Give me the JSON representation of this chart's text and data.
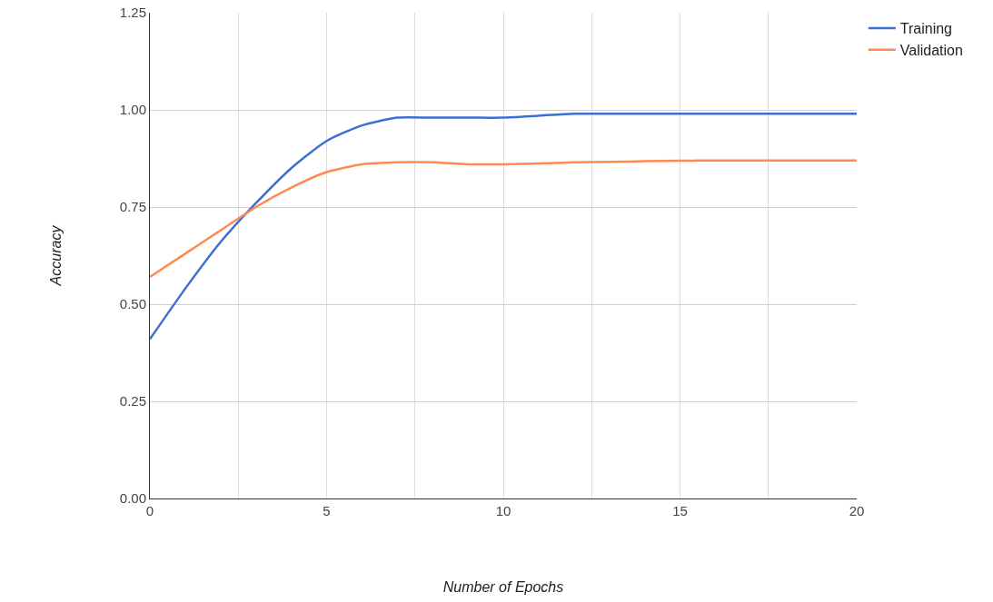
{
  "chart_data": {
    "type": "line",
    "xlabel": "Number of Epochs",
    "ylabel": "Accuracy",
    "x": [
      0,
      1,
      2,
      3,
      4,
      5,
      6,
      7,
      8,
      9,
      10,
      11,
      12,
      13,
      14,
      15,
      16,
      17,
      18,
      19,
      20
    ],
    "series": [
      {
        "name": "Training",
        "color": "#3c6fd6",
        "values": [
          0.41,
          0.54,
          0.66,
          0.76,
          0.85,
          0.92,
          0.96,
          0.98,
          0.98,
          0.98,
          0.98,
          0.985,
          0.99,
          0.99,
          0.99,
          0.99,
          0.99,
          0.99,
          0.99,
          0.99,
          0.99
        ]
      },
      {
        "name": "Validation",
        "color": "#ff8a4f",
        "values": [
          0.57,
          0.63,
          0.69,
          0.75,
          0.8,
          0.84,
          0.86,
          0.865,
          0.865,
          0.86,
          0.86,
          0.862,
          0.865,
          0.866,
          0.868,
          0.869,
          0.87,
          0.87,
          0.87,
          0.87,
          0.87
        ]
      }
    ],
    "xlim": [
      0,
      20
    ],
    "xticks": [
      0,
      {
        "value": 2.5,
        "label": null
      },
      5,
      {
        "value": 7.5,
        "label": null
      },
      10,
      {
        "value": 12.5,
        "label": null
      },
      15,
      {
        "value": 17.5,
        "label": null
      },
      20
    ],
    "ylim": [
      0,
      1.25
    ],
    "yticks": [
      {
        "value": 0,
        "label": "0.00"
      },
      {
        "value": 0.25,
        "label": "0.25"
      },
      {
        "value": 0.5,
        "label": "0.50"
      },
      {
        "value": 0.75,
        "label": "0.75"
      },
      {
        "value": 1,
        "label": "1.00"
      },
      {
        "value": 1.25,
        "label": "1.25"
      }
    ],
    "grid": true,
    "legend": "top right",
    "marker": "none",
    "line_style": "solid"
  }
}
